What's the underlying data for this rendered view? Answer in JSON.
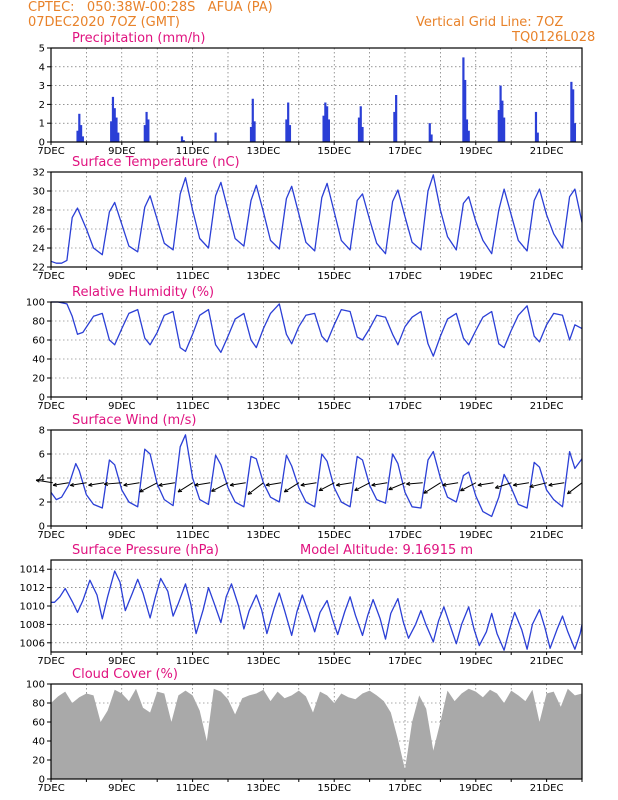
{
  "header": {
    "line1": "CPTEC:   050:38W-00:28S   AFUA (PA)",
    "line2": "07DEC2020 7OZ (GMT)",
    "grid_note": "Vertical Grid Line: 7OZ",
    "code": "TQ0126L028"
  },
  "colors": {
    "title": "#e0127f",
    "header": "#e8822a",
    "series": "#2b3fd6",
    "cloud": "#a9a9a9"
  },
  "chart_data": [
    {
      "id": "precip",
      "type": "bar",
      "title": "Precipitation (mm/h)",
      "ylim": [
        0,
        5
      ],
      "yticks": [
        "0",
        "1",
        "2",
        "3",
        "4",
        "5"
      ],
      "xticks": [
        "7DEC",
        "9DEC",
        "11DEC",
        "13DEC",
        "15DEC",
        "17DEC",
        "19DEC",
        "21DEC"
      ],
      "days": [
        7,
        22
      ],
      "x": [
        7.75,
        7.8,
        7.85,
        7.9,
        8.7,
        8.75,
        8.8,
        8.85,
        8.9,
        9.65,
        9.7,
        9.75,
        10.7,
        10.75,
        11.65,
        12.65,
        12.7,
        12.75,
        13.65,
        13.7,
        13.75,
        14.7,
        14.75,
        14.8,
        14.85,
        15.7,
        15.75,
        15.8,
        16.7,
        16.75,
        17.7,
        17.75,
        18.65,
        18.7,
        18.75,
        18.8,
        19.65,
        19.7,
        19.75,
        19.8,
        20.7,
        20.75,
        21.7,
        21.75,
        21.8
      ],
      "values": [
        0.6,
        1.5,
        0.9,
        0.3,
        1.1,
        2.4,
        1.8,
        1.3,
        0.5,
        0.9,
        1.6,
        1.2,
        0.3,
        0.1,
        0.5,
        0.8,
        2.3,
        1.1,
        1.2,
        2.1,
        0.9,
        1.4,
        2.1,
        1.9,
        1.2,
        1.3,
        1.9,
        0.8,
        1.6,
        2.5,
        1.0,
        0.4,
        4.5,
        3.3,
        1.2,
        0.6,
        1.7,
        3.0,
        2.2,
        1.3,
        1.6,
        0.5,
        3.2,
        2.8,
        1.0
      ]
    },
    {
      "id": "temp",
      "type": "line",
      "title": "Surface Temperature (nC)",
      "ylim": [
        22,
        32
      ],
      "yticks": [
        "22",
        "24",
        "26",
        "28",
        "30",
        "32"
      ],
      "xticks": [
        "7DEC",
        "9DEC",
        "11DEC",
        "13DEC",
        "15DEC",
        "17DEC",
        "19DEC",
        "21DEC"
      ],
      "days": [
        7,
        22
      ],
      "x": [
        7.0,
        7.15,
        7.3,
        7.45,
        7.6,
        7.75,
        8.0,
        8.2,
        8.45,
        8.65,
        8.8,
        9.0,
        9.2,
        9.45,
        9.65,
        9.8,
        10.0,
        10.2,
        10.45,
        10.65,
        10.8,
        11.0,
        11.2,
        11.45,
        11.65,
        11.8,
        12.0,
        12.2,
        12.45,
        12.65,
        12.8,
        13.0,
        13.2,
        13.45,
        13.65,
        13.8,
        14.0,
        14.2,
        14.45,
        14.65,
        14.8,
        15.0,
        15.2,
        15.45,
        15.65,
        15.8,
        16.0,
        16.2,
        16.45,
        16.65,
        16.8,
        17.0,
        17.2,
        17.45,
        17.65,
        17.8,
        18.0,
        18.2,
        18.45,
        18.65,
        18.8,
        19.0,
        19.2,
        19.45,
        19.65,
        19.8,
        20.0,
        20.2,
        20.45,
        20.65,
        20.8,
        21.0,
        21.2,
        21.45,
        21.65,
        21.8,
        22.0
      ],
      "values": [
        22.6,
        22.4,
        22.4,
        22.7,
        27.2,
        28.2,
        26.0,
        24.0,
        23.3,
        27.8,
        28.8,
        26.5,
        24.2,
        23.6,
        28.3,
        29.5,
        27.0,
        24.5,
        23.8,
        29.7,
        31.4,
        28.0,
        25.0,
        24.0,
        29.5,
        30.9,
        28.0,
        25.0,
        24.2,
        29.0,
        30.6,
        27.8,
        24.8,
        23.9,
        29.2,
        30.5,
        27.6,
        24.6,
        23.7,
        29.3,
        30.8,
        27.8,
        24.8,
        23.8,
        29.0,
        29.7,
        27.0,
        24.5,
        23.4,
        28.9,
        30.1,
        27.3,
        24.6,
        23.8,
        30.0,
        31.7,
        28.0,
        25.2,
        23.8,
        28.7,
        29.4,
        26.8,
        24.8,
        23.4,
        28.0,
        30.2,
        27.5,
        24.8,
        23.7,
        29.0,
        30.2,
        27.5,
        25.5,
        24.0,
        29.4,
        30.2,
        26.7
      ]
    },
    {
      "id": "rh",
      "type": "line",
      "title": "Relative Humidity (%)",
      "ylim": [
        0,
        100
      ],
      "yticks": [
        "0",
        "20",
        "40",
        "60",
        "80",
        "100"
      ],
      "xticks": [
        "7DEC",
        "9DEC",
        "11DEC",
        "13DEC",
        "15DEC",
        "17DEC",
        "19DEC",
        "21DEC"
      ],
      "days": [
        7,
        22
      ],
      "x": [
        7.0,
        7.2,
        7.45,
        7.6,
        7.75,
        7.9,
        8.2,
        8.45,
        8.65,
        8.8,
        9.0,
        9.2,
        9.45,
        9.65,
        9.8,
        10.0,
        10.2,
        10.45,
        10.65,
        10.8,
        11.0,
        11.2,
        11.45,
        11.65,
        11.8,
        12.0,
        12.2,
        12.45,
        12.65,
        12.8,
        13.0,
        13.2,
        13.45,
        13.65,
        13.8,
        14.0,
        14.2,
        14.45,
        14.65,
        14.8,
        15.0,
        15.2,
        15.45,
        15.65,
        15.8,
        16.0,
        16.2,
        16.45,
        16.65,
        16.8,
        17.0,
        17.2,
        17.45,
        17.65,
        17.8,
        18.0,
        18.2,
        18.45,
        18.65,
        18.8,
        19.0,
        19.2,
        19.45,
        19.65,
        19.8,
        20.0,
        20.2,
        20.45,
        20.65,
        20.8,
        21.0,
        21.2,
        21.45,
        21.65,
        21.8,
        22.0
      ],
      "values": [
        100,
        100,
        98,
        85,
        66,
        68,
        85,
        88,
        60,
        55,
        72,
        88,
        92,
        62,
        55,
        68,
        86,
        90,
        52,
        48,
        66,
        86,
        92,
        55,
        47,
        64,
        82,
        88,
        60,
        52,
        72,
        88,
        98,
        66,
        56,
        74,
        86,
        88,
        64,
        58,
        76,
        92,
        90,
        63,
        60,
        72,
        86,
        84,
        66,
        55,
        74,
        84,
        90,
        56,
        43,
        64,
        82,
        88,
        62,
        55,
        70,
        84,
        90,
        56,
        52,
        70,
        86,
        96,
        64,
        58,
        76,
        88,
        86,
        60,
        76,
        72
      ]
    },
    {
      "id": "wind",
      "type": "line",
      "title": "Surface Wind (m/s)",
      "ylim": [
        0,
        8
      ],
      "yticks": [
        "0",
        "2",
        "4",
        "6",
        "8"
      ],
      "xticks": [
        "7DEC",
        "9DEC",
        "11DEC",
        "13DEC",
        "15DEC",
        "17DEC",
        "19DEC",
        "21DEC"
      ],
      "days": [
        7,
        22
      ],
      "x": [
        7.0,
        7.15,
        7.3,
        7.5,
        7.7,
        7.8,
        8.0,
        8.2,
        8.45,
        8.65,
        8.8,
        9.0,
        9.2,
        9.45,
        9.65,
        9.8,
        10.0,
        10.2,
        10.45,
        10.65,
        10.8,
        11.0,
        11.2,
        11.45,
        11.65,
        11.8,
        12.0,
        12.2,
        12.45,
        12.65,
        12.8,
        13.0,
        13.2,
        13.45,
        13.65,
        13.8,
        14.0,
        14.2,
        14.45,
        14.65,
        14.8,
        15.0,
        15.2,
        15.45,
        15.65,
        15.8,
        16.0,
        16.2,
        16.45,
        16.65,
        16.8,
        17.0,
        17.2,
        17.45,
        17.65,
        17.8,
        18.0,
        18.2,
        18.45,
        18.65,
        18.8,
        19.0,
        19.2,
        19.45,
        19.65,
        19.8,
        20.0,
        20.2,
        20.45,
        20.65,
        20.8,
        21.0,
        21.2,
        21.45,
        21.65,
        21.8,
        22.0
      ],
      "values": [
        2.8,
        2.2,
        2.4,
        3.4,
        5.2,
        4.6,
        2.6,
        1.8,
        1.5,
        5.5,
        5.1,
        3.0,
        2.0,
        1.6,
        6.4,
        6.0,
        3.5,
        2.2,
        1.7,
        6.6,
        7.6,
        4.0,
        2.2,
        1.8,
        5.9,
        5.1,
        3.2,
        2.0,
        1.6,
        5.8,
        5.6,
        3.6,
        2.4,
        2.0,
        5.9,
        5.0,
        3.2,
        2.0,
        1.6,
        6.0,
        5.4,
        3.2,
        2.0,
        1.6,
        5.8,
        5.5,
        3.4,
        2.2,
        1.9,
        6.0,
        5.2,
        2.8,
        1.6,
        1.5,
        5.5,
        6.2,
        4.0,
        2.4,
        2.0,
        4.2,
        4.5,
        2.5,
        1.2,
        0.8,
        2.4,
        4.3,
        3.2,
        1.8,
        1.5,
        5.3,
        4.9,
        3.0,
        2.2,
        1.6,
        6.2,
        4.8,
        5.6
      ]
    },
    {
      "id": "pres",
      "type": "line",
      "title": "Surface Pressure (hPa)",
      "annotation": "Model Altitude: 9.16915 m",
      "ylim": [
        1005,
        1015
      ],
      "yticks": [
        "1006",
        "1008",
        "1010",
        "1012",
        "1014"
      ],
      "xticks": [
        "7DEC",
        "9DEC",
        "11DEC",
        "13DEC",
        "15DEC",
        "17DEC",
        "19DEC",
        "21DEC"
      ],
      "days": [
        7,
        22
      ],
      "x": [
        7.0,
        7.1,
        7.25,
        7.4,
        7.6,
        7.75,
        7.9,
        8.1,
        8.3,
        8.45,
        8.6,
        8.8,
        8.95,
        9.1,
        9.3,
        9.45,
        9.6,
        9.8,
        9.95,
        10.1,
        10.3,
        10.45,
        10.6,
        10.8,
        10.95,
        11.1,
        11.3,
        11.45,
        11.6,
        11.8,
        11.95,
        12.1,
        12.3,
        12.45,
        12.6,
        12.8,
        12.95,
        13.1,
        13.3,
        13.45,
        13.6,
        13.8,
        13.95,
        14.1,
        14.3,
        14.45,
        14.6,
        14.8,
        14.95,
        15.1,
        15.3,
        15.45,
        15.6,
        15.8,
        15.95,
        16.1,
        16.3,
        16.45,
        16.6,
        16.8,
        16.95,
        17.1,
        17.3,
        17.45,
        17.6,
        17.8,
        17.95,
        18.1,
        18.3,
        18.45,
        18.6,
        18.8,
        18.95,
        19.1,
        19.3,
        19.45,
        19.6,
        19.8,
        19.95,
        20.1,
        20.3,
        20.45,
        20.6,
        20.8,
        20.95,
        21.1,
        21.3,
        21.45,
        21.6,
        21.8,
        21.95,
        22.0
      ],
      "values": [
        1010.4,
        1010.4,
        1011.0,
        1011.9,
        1010.5,
        1009.3,
        1010.6,
        1012.8,
        1011.2,
        1008.6,
        1011.0,
        1013.8,
        1012.6,
        1009.5,
        1011.4,
        1012.9,
        1011.4,
        1008.7,
        1011.0,
        1013.0,
        1011.6,
        1008.9,
        1010.3,
        1012.4,
        1010.2,
        1007.0,
        1009.6,
        1012.0,
        1010.4,
        1008.2,
        1011.0,
        1012.4,
        1010.0,
        1007.5,
        1009.5,
        1011.2,
        1009.6,
        1007.0,
        1009.7,
        1011.4,
        1009.5,
        1006.8,
        1009.4,
        1011.2,
        1009.0,
        1007.2,
        1009.3,
        1010.6,
        1008.6,
        1006.9,
        1009.4,
        1011.0,
        1009.0,
        1006.8,
        1009.0,
        1010.7,
        1008.6,
        1006.4,
        1009.2,
        1010.8,
        1008.3,
        1006.5,
        1008.0,
        1009.5,
        1007.9,
        1006.1,
        1008.4,
        1009.9,
        1007.6,
        1005.9,
        1008.0,
        1009.9,
        1007.5,
        1005.7,
        1007.2,
        1009.2,
        1007.0,
        1005.2,
        1007.4,
        1009.3,
        1007.4,
        1005.3,
        1008.0,
        1009.6,
        1007.7,
        1005.4,
        1007.5,
        1008.9,
        1007.2,
        1005.3,
        1007.0,
        1008.0
      ]
    },
    {
      "id": "cloud",
      "type": "area",
      "title": "Cloud Cover (%)",
      "ylim": [
        0,
        100
      ],
      "yticks": [
        "0",
        "20",
        "40",
        "60",
        "80",
        "100"
      ],
      "xticks": [
        "7DEC",
        "9DEC",
        "11DEC",
        "13DEC",
        "15DEC",
        "17DEC",
        "19DEC",
        "21DEC"
      ],
      "days": [
        7,
        22
      ],
      "x": [
        7.0,
        7.2,
        7.4,
        7.6,
        7.8,
        8.0,
        8.2,
        8.4,
        8.6,
        8.8,
        9.0,
        9.2,
        9.4,
        9.6,
        9.8,
        10.0,
        10.2,
        10.4,
        10.6,
        10.8,
        11.0,
        11.2,
        11.4,
        11.6,
        11.8,
        12.0,
        12.2,
        12.4,
        12.6,
        12.8,
        13.0,
        13.2,
        13.4,
        13.6,
        13.8,
        14.0,
        14.2,
        14.4,
        14.6,
        14.8,
        15.0,
        15.2,
        15.4,
        15.6,
        15.8,
        16.0,
        16.2,
        16.4,
        16.6,
        16.8,
        17.0,
        17.2,
        17.4,
        17.6,
        17.8,
        18.0,
        18.2,
        18.4,
        18.6,
        18.8,
        19.0,
        19.2,
        19.4,
        19.6,
        19.8,
        20.0,
        20.2,
        20.4,
        20.6,
        20.8,
        21.0,
        21.2,
        21.4,
        21.6,
        21.8,
        22.0
      ],
      "values": [
        80,
        87,
        92,
        80,
        86,
        90,
        88,
        60,
        72,
        94,
        90,
        82,
        95,
        75,
        70,
        92,
        90,
        60,
        88,
        93,
        88,
        72,
        40,
        95,
        92,
        84,
        68,
        85,
        88,
        90,
        94,
        82,
        92,
        85,
        88,
        93,
        87,
        70,
        92,
        88,
        80,
        90,
        86,
        84,
        90,
        93,
        88,
        82,
        70,
        42,
        10,
        60,
        88,
        74,
        30,
        60,
        93,
        82,
        90,
        95,
        92,
        86,
        94,
        90,
        80,
        93,
        88,
        82,
        94,
        60,
        90,
        92,
        76,
        95,
        88,
        90
      ]
    },
    {
      "id": "wind_dir",
      "type": "vector",
      "x": [
        7.05,
        7.5,
        8.0,
        8.5,
        9.0,
        9.5,
        10.0,
        10.5,
        11.0,
        11.5,
        12.0,
        12.5,
        13.0,
        13.5,
        14.0,
        14.5,
        15.0,
        15.5,
        16.0,
        16.5,
        17.0,
        17.5,
        18.0,
        18.5,
        19.0,
        19.5,
        20.0,
        20.5,
        21.0,
        21.5,
        22.0
      ],
      "direction_deg": [
        100,
        80,
        80,
        80,
        85,
        80,
        60,
        80,
        55,
        80,
        60,
        80,
        50,
        80,
        55,
        80,
        60,
        80,
        60,
        80,
        65,
        85,
        55,
        80,
        60,
        80,
        70,
        80,
        75,
        80,
        50
      ],
      "speed": [
        4.2,
        3.8,
        4.0,
        3.8,
        4.5,
        3.9,
        5.5,
        4.0,
        4.5,
        3.8,
        5.0,
        3.8,
        5.4,
        3.6,
        4.5,
        3.8,
        4.4,
        3.8,
        4.3,
        3.8,
        4.6,
        4.0,
        5.5,
        3.8,
        4.5,
        3.8,
        4.2,
        3.8,
        4.4,
        3.8,
        5.0
      ]
    }
  ]
}
